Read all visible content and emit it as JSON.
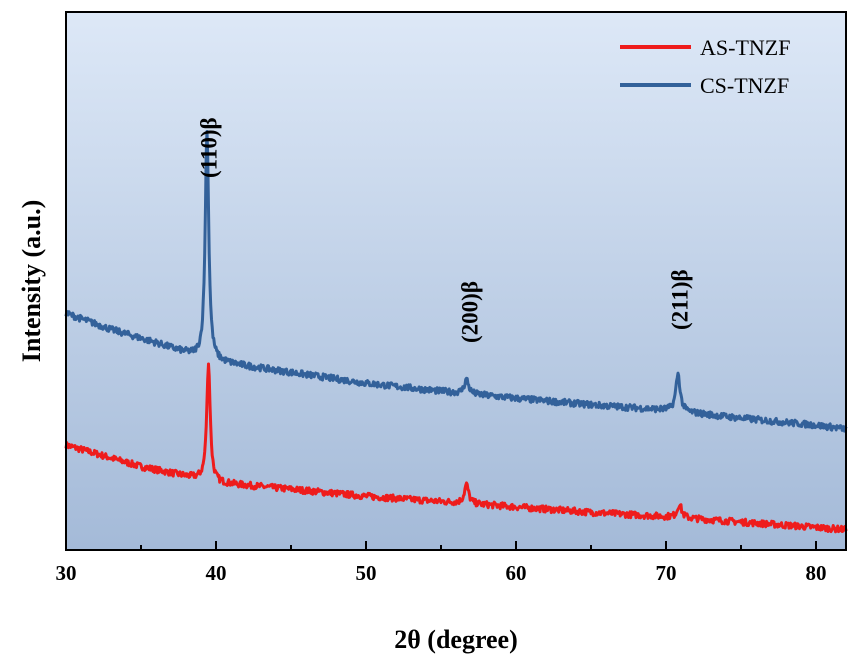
{
  "chart_data": {
    "type": "line",
    "xlabel": "2θ (degree)",
    "ylabel": "Intensity (a.u.)",
    "xlim": [
      30,
      82
    ],
    "x_ticks": [
      30,
      40,
      50,
      60,
      70,
      80
    ],
    "y_ticks_shown": false,
    "legend_position": "top-right",
    "background": "vertical gradient, light blue to blue-gray",
    "series": [
      {
        "name": "AS-TNZF",
        "color": "#ee1c1c",
        "baseline_points": [
          [
            30,
            0.195
          ],
          [
            35,
            0.155
          ],
          [
            39.2,
            0.13
          ],
          [
            40,
            0.125
          ],
          [
            45,
            0.113
          ],
          [
            50,
            0.1
          ],
          [
            55,
            0.09
          ],
          [
            60,
            0.08
          ],
          [
            65,
            0.07
          ],
          [
            70,
            0.062
          ],
          [
            75,
            0.052
          ],
          [
            80,
            0.042
          ],
          [
            82,
            0.038
          ]
        ],
        "peaks": [
          {
            "x": 39.5,
            "height": 0.22,
            "width": 0.14
          },
          {
            "x": 56.7,
            "height": 0.035,
            "width": 0.17
          },
          {
            "x": 70.9,
            "height": 0.025,
            "width": 0.17
          }
        ]
      },
      {
        "name": "CS-TNZF",
        "color": "#33619a",
        "baseline_points": [
          [
            30,
            0.44
          ],
          [
            33,
            0.41
          ],
          [
            36,
            0.385
          ],
          [
            39.2,
            0.355
          ],
          [
            40,
            0.35
          ],
          [
            45,
            0.33
          ],
          [
            50,
            0.31
          ],
          [
            55,
            0.295
          ],
          [
            60,
            0.282
          ],
          [
            65,
            0.27
          ],
          [
            70,
            0.26
          ],
          [
            75,
            0.245
          ],
          [
            80,
            0.232
          ],
          [
            82,
            0.225
          ]
        ],
        "peaks": [
          {
            "x": 39.4,
            "height": 0.43,
            "width": 0.14
          },
          {
            "x": 56.7,
            "height": 0.027,
            "width": 0.17
          },
          {
            "x": 70.8,
            "height": 0.07,
            "width": 0.17
          }
        ]
      }
    ],
    "annotations": [
      {
        "text": "(110)β",
        "x": 39.5
      },
      {
        "text": "(200)β",
        "x": 56.9
      },
      {
        "text": "(211)β",
        "x": 70.9
      }
    ]
  }
}
